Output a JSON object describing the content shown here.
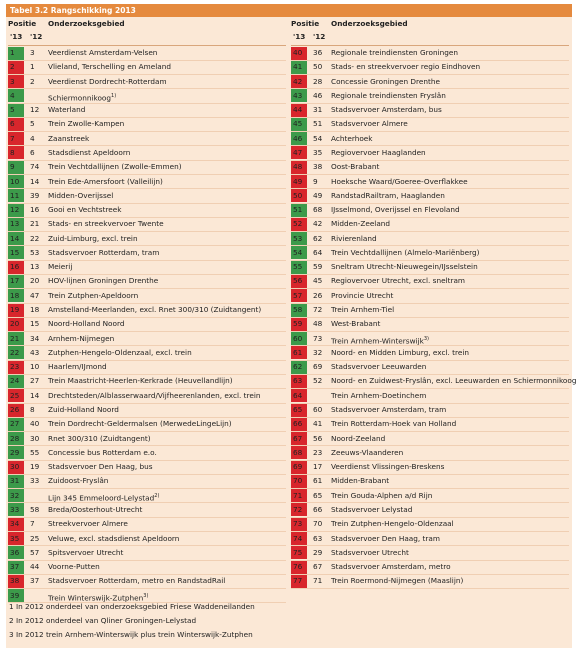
{
  "header": {
    "title": "Tabel 3.2 Rangschikking 2013"
  },
  "columns": {
    "positie": "Positie",
    "onderzoeksgebied": "Onderzoeksgebied",
    "y13": "'13",
    "y12": "'12"
  },
  "left": [
    {
      "p13": "1",
      "p12": "3",
      "name": "Veerdienst Amsterdam-Velsen",
      "color": "#3c9a4a"
    },
    {
      "p13": "2",
      "p12": "1",
      "name": "Vlieland, Terschelling en Ameland",
      "color": "#d8262c"
    },
    {
      "p13": "3",
      "p12": "2",
      "name": "Veerdienst Dordrecht-Rotterdam",
      "color": "#d8262c"
    },
    {
      "p13": "4",
      "p12": null,
      "name": "Schiermonnikoog",
      "note": "1)",
      "color": "#3c9a4a"
    },
    {
      "p13": "5",
      "p12": "12",
      "name": "Waterland",
      "color": "#3c9a4a"
    },
    {
      "p13": "6",
      "p12": "5",
      "name": "Trein Zwolle-Kampen",
      "color": "#d8262c"
    },
    {
      "p13": "7",
      "p12": "4",
      "name": "Zaanstreek",
      "color": "#d8262c"
    },
    {
      "p13": "8",
      "p12": "6",
      "name": "Stadsdienst Apeldoorn",
      "color": "#d8262c"
    },
    {
      "p13": "9",
      "p12": "74",
      "name": "Trein Vechtdallijnen (Zwolle-Emmen)",
      "color": "#3c9a4a"
    },
    {
      "p13": "10",
      "p12": "14",
      "name": "Trein Ede-Amersfoort (Valleilijn)",
      "color": "#3c9a4a"
    },
    {
      "p13": "11",
      "p12": "39",
      "name": "Midden-Overijssel",
      "color": "#3c9a4a"
    },
    {
      "p13": "12",
      "p12": "16",
      "name": "Gooi en Vechtstreek",
      "color": "#3c9a4a"
    },
    {
      "p13": "13",
      "p12": "21",
      "name": "Stads- en streekvervoer Twente",
      "color": "#3c9a4a"
    },
    {
      "p13": "14",
      "p12": "22",
      "name": "Zuid-Limburg, excl. trein",
      "color": "#3c9a4a"
    },
    {
      "p13": "15",
      "p12": "53",
      "name": "Stadsvervoer Rotterdam, tram",
      "color": "#3c9a4a"
    },
    {
      "p13": "16",
      "p12": "13",
      "name": "Meierij",
      "color": "#d8262c"
    },
    {
      "p13": "17",
      "p12": "20",
      "name": "HOV-lijnen Groningen Drenthe",
      "color": "#3c9a4a"
    },
    {
      "p13": "18",
      "p12": "47",
      "name": "Trein Zutphen-Apeldoorn",
      "color": "#3c9a4a"
    },
    {
      "p13": "19",
      "p12": "18",
      "name": "Amstelland-Meerlanden, excl. Rnet 300/310 (Zuidtangent)",
      "color": "#d8262c"
    },
    {
      "p13": "20",
      "p12": "15",
      "name": "Noord-Holland Noord",
      "color": "#d8262c"
    },
    {
      "p13": "21",
      "p12": "34",
      "name": "Arnhem-Nijmegen",
      "color": "#3c9a4a"
    },
    {
      "p13": "22",
      "p12": "43",
      "name": "Zutphen-Hengelo-Oldenzaal, excl. trein",
      "color": "#3c9a4a"
    },
    {
      "p13": "23",
      "p12": "10",
      "name": "Haarlem/IJmond",
      "color": "#d8262c"
    },
    {
      "p13": "24",
      "p12": "27",
      "name": "Trein Maastricht-Heerlen-Kerkrade (Heuvellandlijn)",
      "color": "#3c9a4a"
    },
    {
      "p13": "25",
      "p12": "14",
      "name": "Drechtsteden/Alblasserwaard/Vijfheerenlanden, excl. trein",
      "color": "#d8262c"
    },
    {
      "p13": "26",
      "p12": "8",
      "name": "Zuid-Holland Noord",
      "color": "#d8262c"
    },
    {
      "p13": "27",
      "p12": "40",
      "name": "Trein Dordrecht-Geldermalsen (MerwedeLingeLijn)",
      "color": "#3c9a4a"
    },
    {
      "p13": "28",
      "p12": "30",
      "name": "Rnet 300/310 (Zuidtangent)",
      "color": "#3c9a4a"
    },
    {
      "p13": "29",
      "p12": "55",
      "name": "Concessie bus Rotterdam e.o.",
      "color": "#3c9a4a"
    },
    {
      "p13": "30",
      "p12": "19",
      "name": "Stadsvervoer Den Haag, bus",
      "color": "#d8262c"
    },
    {
      "p13": "31",
      "p12": "33",
      "name": "Zuidoost-Fryslân",
      "color": "#3c9a4a"
    },
    {
      "p13": "32",
      "p12": null,
      "name": "Lijn 345 Emmeloord-Lelystad",
      "note": "2)",
      "color": "#3c9a4a"
    },
    {
      "p13": "33",
      "p12": "58",
      "name": "Breda/Oosterhout-Utrecht",
      "color": "#3c9a4a"
    },
    {
      "p13": "34",
      "p12": "7",
      "name": "Streekvervoer Almere",
      "color": "#d8262c"
    },
    {
      "p13": "35",
      "p12": "25",
      "name": "Veluwe, excl. stadsdienst Apeldoorn",
      "color": "#d8262c"
    },
    {
      "p13": "36",
      "p12": "57",
      "name": "Spitsvervoer Utrecht",
      "color": "#3c9a4a"
    },
    {
      "p13": "37",
      "p12": "44",
      "name": "Voorne-Putten",
      "color": "#3c9a4a"
    },
    {
      "p13": "38",
      "p12": "37",
      "name": "Stadsvervoer Rotterdam, metro en RandstadRail",
      "color": "#d8262c"
    },
    {
      "p13": "39",
      "p12": null,
      "name": "Trein Winterswijk-Zutphen",
      "note": "3)",
      "color": "#3c9a4a"
    }
  ],
  "right": [
    {
      "p13": "40",
      "p12": "36",
      "name": "Regionale treindiensten Groningen",
      "color": "#d8262c"
    },
    {
      "p13": "41",
      "p12": "50",
      "name": "Stads- en streekvervoer regio Eindhoven",
      "color": "#3c9a4a"
    },
    {
      "p13": "42",
      "p12": "28",
      "name": "Concessie Groningen Drenthe",
      "color": "#d8262c"
    },
    {
      "p13": "43",
      "p12": "46",
      "name": "Regionale treindiensten Fryslân",
      "color": "#3c9a4a"
    },
    {
      "p13": "44",
      "p12": "31",
      "name": "Stadsvervoer Amsterdam, bus",
      "color": "#d8262c"
    },
    {
      "p13": "45",
      "p12": "51",
      "name": "Stadsvervoer Almere",
      "color": "#3c9a4a"
    },
    {
      "p13": "46",
      "p12": "54",
      "name": "Achterhoek",
      "color": "#3c9a4a"
    },
    {
      "p13": "47",
      "p12": "35",
      "name": "Regiovervoer Haaglanden",
      "color": "#d8262c"
    },
    {
      "p13": "48",
      "p12": "38",
      "name": "Oost-Brabant",
      "color": "#d8262c"
    },
    {
      "p13": "49",
      "p12": "9",
      "name": "Hoeksche Waard/Goeree-Overflakkee",
      "color": "#d8262c"
    },
    {
      "p13": "50",
      "p12": "49",
      "name": "RandstadRailtram, Haaglanden",
      "color": "#d8262c"
    },
    {
      "p13": "51",
      "p12": "68",
      "name": "IJsselmond, Overijssel en Flevoland",
      "color": "#3c9a4a"
    },
    {
      "p13": "52",
      "p12": "42",
      "name": "Midden-Zeeland",
      "color": "#d8262c"
    },
    {
      "p13": "53",
      "p12": "62",
      "name": "Rivierenland",
      "color": "#3c9a4a"
    },
    {
      "p13": "54",
      "p12": "64",
      "name": "Trein Vechtdallijnen (Almelo-Mariënberg)",
      "color": "#3c9a4a"
    },
    {
      "p13": "55",
      "p12": "59",
      "name": "Sneltram Utrecht-Nieuwegein/IJsselstein",
      "color": "#3c9a4a"
    },
    {
      "p13": "56",
      "p12": "45",
      "name": "Regiovervoer Utrecht, excl. sneltram",
      "color": "#d8262c"
    },
    {
      "p13": "57",
      "p12": "26",
      "name": "Provincie Utrecht",
      "color": "#d8262c"
    },
    {
      "p13": "58",
      "p12": "72",
      "name": "Trein Arnhem-Tiel",
      "color": "#3c9a4a"
    },
    {
      "p13": "59",
      "p12": "48",
      "name": "West-Brabant",
      "color": "#d8262c"
    },
    {
      "p13": "60",
      "p12": "73",
      "name": "Trein Arnhem-Winterswijk",
      "note": "3)",
      "color": "#3c9a4a"
    },
    {
      "p13": "61",
      "p12": "32",
      "name": "Noord- en Midden Limburg, excl. trein",
      "color": "#d8262c"
    },
    {
      "p13": "62",
      "p12": "69",
      "name": "Stadsvervoer Leeuwarden",
      "color": "#3c9a4a"
    },
    {
      "p13": "63",
      "p12": "52",
      "name": "Noord- en Zuidwest-Fryslân, excl. Leeuwarden en Schiermonnikoog",
      "color": "#d8262c"
    },
    {
      "p13": "64",
      "p12": null,
      "name": "Trein Arnhem-Doetinchem",
      "color": "#d8262c"
    },
    {
      "p13": "65",
      "p12": "60",
      "name": "Stadsvervoer Amsterdam, tram",
      "color": "#d8262c"
    },
    {
      "p13": "66",
      "p12": "41",
      "name": "Trein Rotterdam-Hoek van Holland",
      "color": "#d8262c"
    },
    {
      "p13": "67",
      "p12": "56",
      "name": "Noord-Zeeland",
      "color": "#d8262c"
    },
    {
      "p13": "68",
      "p12": "23",
      "name": "Zeeuws-Vlaanderen",
      "color": "#d8262c"
    },
    {
      "p13": "69",
      "p12": "17",
      "name": "Veerdienst Vlissingen-Breskens",
      "color": "#d8262c"
    },
    {
      "p13": "70",
      "p12": "61",
      "name": "Midden-Brabant",
      "color": "#d8262c"
    },
    {
      "p13": "71",
      "p12": "65",
      "name": "Trein Gouda-Alphen a/d Rijn",
      "color": "#d8262c"
    },
    {
      "p13": "72",
      "p12": "66",
      "name": "Stadsvervoer Lelystad",
      "color": "#d8262c"
    },
    {
      "p13": "73",
      "p12": "70",
      "name": "Trein Zutphen-Hengelo-Oldenzaal",
      "color": "#d8262c"
    },
    {
      "p13": "74",
      "p12": "63",
      "name": "Stadsvervoer Den Haag, tram",
      "color": "#d8262c"
    },
    {
      "p13": "75",
      "p12": "29",
      "name": "Stadsvervoer Utrecht",
      "color": "#d8262c"
    },
    {
      "p13": "76",
      "p12": "67",
      "name": "Stadsvervoer Amsterdam, metro",
      "color": "#d8262c"
    },
    {
      "p13": "77",
      "p12": "71",
      "name": "Trein Roermond-Nijmegen (Maaslijn)",
      "color": "#d8262c"
    }
  ],
  "footnotes": [
    "1 In 2012 onderdeel van onderzoeksgebied Friese Waddeneilanden",
    "2 In 2012 onderdeel van Qliner Groningen-Lelystad",
    "3 In 2012 trein Arnhem-Winterswijk plus trein Winterswijk-Zutphen"
  ]
}
